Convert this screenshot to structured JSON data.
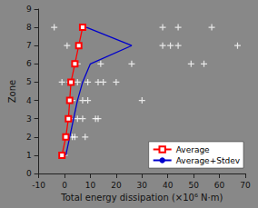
{
  "chart_data": {
    "type": "scatter",
    "xlabel": "Total energy dissipation (×10⁶ N·m)",
    "ylabel": "Zone",
    "xlim": [
      -10,
      70
    ],
    "ylim": [
      0,
      9
    ],
    "xticks": [
      -10,
      0,
      10,
      20,
      30,
      40,
      50,
      60,
      70
    ],
    "yticks": [
      0,
      1,
      2,
      3,
      4,
      5,
      6,
      7,
      8,
      9
    ],
    "grid": false,
    "legend": "lower right",
    "series": [
      {
        "type": "scatter",
        "color": "#ffffff",
        "marker": "plus",
        "x": [
          -4,
          38,
          44,
          57,
          1,
          38,
          41,
          44,
          67,
          5,
          14,
          26,
          49,
          54,
          -1,
          2,
          5,
          9,
          13,
          15,
          20,
          3,
          7,
          9,
          30,
          2,
          5,
          7,
          12,
          13,
          1,
          3,
          4,
          8,
          0
        ],
        "values": [
          8,
          8,
          8,
          8,
          7,
          7,
          7,
          7,
          7,
          6,
          6,
          6,
          6,
          6,
          5,
          5,
          5,
          5,
          5,
          5,
          5,
          4,
          4,
          4,
          4,
          3,
          3,
          3,
          3,
          3,
          2,
          2,
          2,
          2,
          1
        ]
      },
      {
        "name": "Average",
        "type": "line",
        "color": "#ff0000",
        "marker": "square",
        "x": [
          -1,
          0.5,
          1.5,
          2.0,
          2.5,
          4.0,
          5.5,
          7.0
        ],
        "values": [
          1,
          2,
          3,
          4,
          5,
          6,
          7,
          8
        ]
      },
      {
        "name": "Average+Stdev",
        "type": "line",
        "color": "#0000cc",
        "x": [
          0.5,
          2.0,
          3.5,
          5.0,
          7.0,
          10.0,
          26.0,
          8.5
        ],
        "values": [
          1,
          2,
          3,
          4,
          5,
          6,
          7,
          8
        ]
      }
    ]
  }
}
